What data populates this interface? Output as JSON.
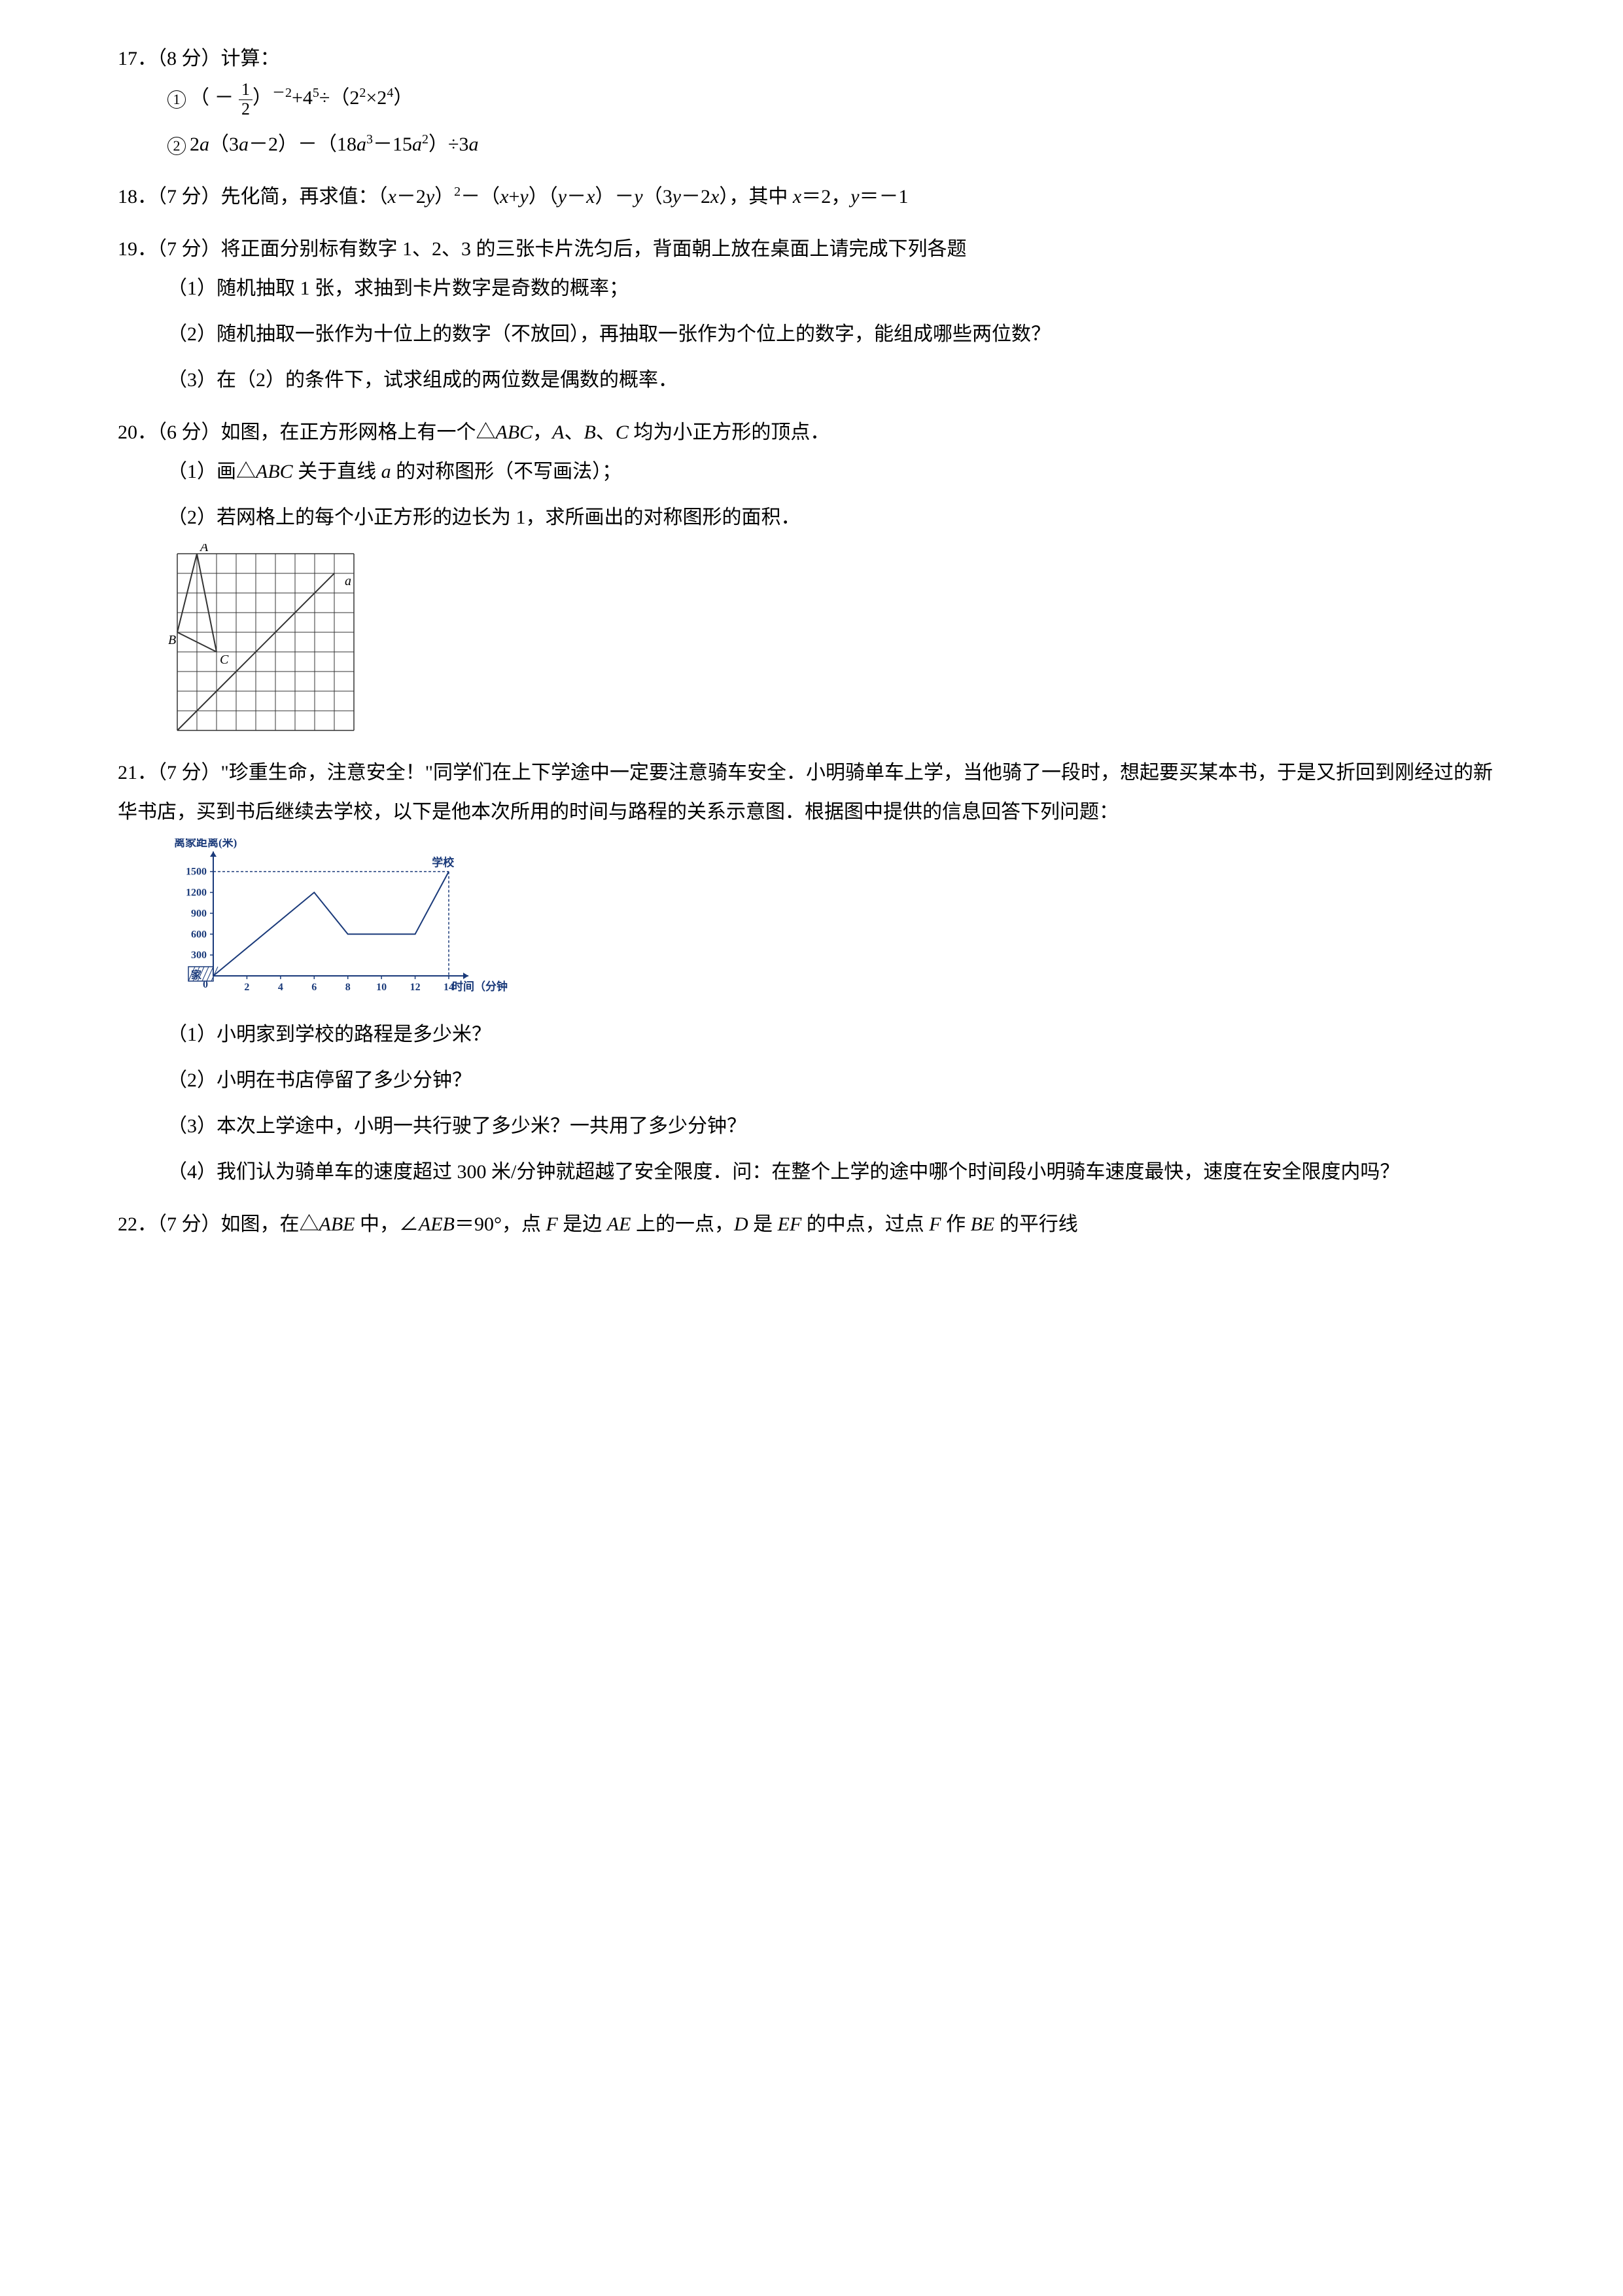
{
  "q17": {
    "header": "17．（8 分）计算：",
    "part1": "（ － ",
    "part1b": "）",
    "exp1": "－2",
    "part1c": "+4",
    "exp2": "5",
    "part1d": "÷（2",
    "exp3": "2",
    "part1e": "×2",
    "exp4": "4",
    "part1f": "）",
    "part2": "2",
    "part2a": "a",
    "part2b": "（3",
    "part2c": "a",
    "part2d": "－2）－（18",
    "part2e": "a",
    "exp5": "3",
    "part2f": "－15",
    "part2g": "a",
    "exp6": "2",
    "part2h": "）÷3",
    "part2i": "a",
    "frac_num": "1",
    "frac_den": "2"
  },
  "q18": {
    "text_a": "18．（7 分）先化简，再求值：（",
    "x1": "x",
    "text_b": "－2",
    "y1": "y",
    "text_c": "）",
    "exp1": "2",
    "text_d": "－（",
    "x2": "x",
    "text_e": "+",
    "y2": "y",
    "text_f": "）（",
    "y3": "y",
    "text_g": "－",
    "x3": "x",
    "text_h": "）－",
    "y4": "y",
    "text_i": "（3",
    "y5": "y",
    "text_j": "－2",
    "x4": "x",
    "text_k": "），其中 ",
    "x5": "x",
    "text_l": "＝2，",
    "y6": "y",
    "text_m": "＝－1"
  },
  "q19": {
    "header": "19．（7 分）将正面分别标有数字 1、2、3 的三张卡片洗匀后，背面朝上放在桌面上请完成下列各题",
    "s1": "（1）随机抽取 1 张，求抽到卡片数字是奇数的概率；",
    "s2": "（2）随机抽取一张作为十位上的数字（不放回），再抽取一张作为个位上的数字，能组成哪些两位数？",
    "s3": "（3）在（2）的条件下，试求组成的两位数是偶数的概率．"
  },
  "q20": {
    "header_a": "20．（6 分）如图，在正方形网格上有一个△",
    "abc": "ABC",
    "header_b": "，",
    "A": "A",
    "header_c": "、",
    "B": "B",
    "header_d": "、",
    "C": "C",
    "header_e": " 均为小正方形的顶点．",
    "s1_a": "（1）画△",
    "s1_abc": "ABC",
    "s1_b": " 关于直线 ",
    "s1_a_letter": "a",
    "s1_c": " 的对称图形（不写画法）；",
    "s2": "（2）若网格上的每个小正方形的边长为 1，求所画出的对称图形的面积．",
    "grid": {
      "cols": 9,
      "rows": 9,
      "cell": 30,
      "labelA": "A",
      "labelB": "B",
      "labelC": "C",
      "labela": "a",
      "A_pos": [
        1,
        0
      ],
      "B_pos": [
        0,
        4
      ],
      "C_pos": [
        2,
        5
      ],
      "line_start": [
        8,
        1
      ],
      "line_end": [
        0,
        9
      ],
      "stroke": "#333333"
    }
  },
  "q21": {
    "header": "21．（7 分）\"珍重生命，注意安全！\"同学们在上下学途中一定要注意骑车安全．小明骑单车上学，当他骑了一段时，想起要买某本书，于是又折回到刚经过的新华书店，买到书后继续去学校，以下是他本次所用的时间与路程的关系示意图．根据图中提供的信息回答下列问题：",
    "s1": "（1）小明家到学校的路程是多少米？",
    "s2": "（2）小明在书店停留了多少分钟？",
    "s3": "（3）本次上学途中，小明一共行驶了多少米？一共用了多少分钟？",
    "s4": "（4）我们认为骑单车的速度超过 300 米/分钟就超越了安全限度．问：在整个上学的途中哪个时间段小明骑车速度最快，速度在安全限度内吗？",
    "chart": {
      "ylab": "离家距离(米)",
      "xlabel": "时间（分钟）",
      "school": "学校",
      "home": "家",
      "yticks": [
        "300",
        "600",
        "900",
        "1200",
        "1500"
      ],
      "yvals": [
        300,
        600,
        900,
        1200,
        1500
      ],
      "xticks": [
        "2",
        "4",
        "6",
        "8",
        "10",
        "12",
        "14"
      ],
      "xvals": [
        2,
        4,
        6,
        8,
        10,
        12,
        14
      ],
      "points": [
        [
          0,
          0
        ],
        [
          6,
          1200
        ],
        [
          8,
          600
        ],
        [
          12,
          600
        ],
        [
          14,
          1500
        ]
      ],
      "dashed": [
        [
          14,
          1500
        ],
        [
          14,
          0
        ]
      ],
      "dashed2": [
        [
          0,
          1500
        ],
        [
          14,
          1500
        ]
      ],
      "stroke": "#1a3a7a",
      "linew": 2
    }
  },
  "q22": {
    "text_a": "22．（7 分）如图，在△",
    "abe": "ABE",
    "text_b": " 中，∠",
    "aeb": "AEB",
    "text_c": "＝90°，点 ",
    "F": "F",
    "text_d": " 是边 ",
    "AE": "AE",
    "text_e": " 上的一点，",
    "D": "D",
    "text_f": " 是 ",
    "EF": "EF",
    "text_g": " 的中点，过点 ",
    "F2": "F",
    "text_h": " 作 ",
    "BE": "BE",
    "text_i": " 的平行线"
  }
}
